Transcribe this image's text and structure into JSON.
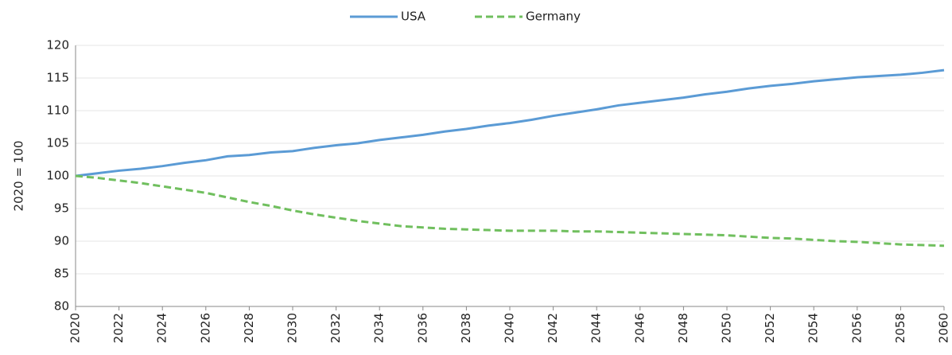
{
  "chart_data": {
    "type": "line",
    "y_label": "2020 = 100",
    "x": [
      2020,
      2021,
      2022,
      2023,
      2024,
      2025,
      2026,
      2027,
      2028,
      2029,
      2030,
      2031,
      2032,
      2033,
      2034,
      2035,
      2036,
      2037,
      2038,
      2039,
      2040,
      2041,
      2042,
      2043,
      2044,
      2045,
      2046,
      2047,
      2048,
      2049,
      2050,
      2051,
      2052,
      2053,
      2054,
      2055,
      2056,
      2057,
      2058,
      2059,
      2060
    ],
    "series": [
      {
        "name": "USA",
        "color": "#5b9bd5",
        "line_style": "solid",
        "values": [
          100,
          100.4,
          100.8,
          101.1,
          101.5,
          102.0,
          102.4,
          103.0,
          103.2,
          103.6,
          103.8,
          104.3,
          104.7,
          105.0,
          105.5,
          105.9,
          106.3,
          106.8,
          107.2,
          107.7,
          108.1,
          108.6,
          109.2,
          109.7,
          110.2,
          110.8,
          111.2,
          111.6,
          112.0,
          112.5,
          112.9,
          113.4,
          113.8,
          114.1,
          114.5,
          114.8,
          115.1,
          115.3,
          115.5,
          115.8,
          116.2
        ]
      },
      {
        "name": "Germany",
        "color": "#70bf5e",
        "line_style": "dashed",
        "values": [
          100,
          99.7,
          99.3,
          98.9,
          98.4,
          97.9,
          97.4,
          96.7,
          96.0,
          95.4,
          94.7,
          94.1,
          93.6,
          93.1,
          92.7,
          92.3,
          92.1,
          91.9,
          91.8,
          91.7,
          91.6,
          91.6,
          91.6,
          91.5,
          91.5,
          91.4,
          91.3,
          91.2,
          91.1,
          91.0,
          90.9,
          90.7,
          90.5,
          90.4,
          90.2,
          90.0,
          89.9,
          89.7,
          89.5,
          89.4,
          89.3
        ]
      }
    ],
    "xlim": [
      2020,
      2060
    ],
    "xticks": [
      2020,
      2022,
      2024,
      2026,
      2028,
      2030,
      2032,
      2034,
      2036,
      2038,
      2040,
      2042,
      2044,
      2046,
      2048,
      2050,
      2052,
      2054,
      2056,
      2058,
      2060
    ],
    "ylim": [
      80,
      120
    ],
    "yticks": [
      80,
      85,
      90,
      95,
      100,
      105,
      110,
      115,
      120
    ],
    "grid": true,
    "legend": "top"
  }
}
